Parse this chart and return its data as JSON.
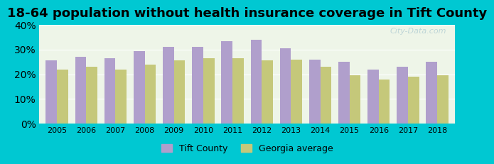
{
  "title": "18-64 population without health insurance coverage in Tift County",
  "years": [
    2005,
    2006,
    2007,
    2008,
    2009,
    2010,
    2011,
    2012,
    2013,
    2014,
    2015,
    2016,
    2017,
    2018
  ],
  "tift_county": [
    25.5,
    27.0,
    26.5,
    29.5,
    31.0,
    31.0,
    33.5,
    34.0,
    30.5,
    26.0,
    25.0,
    22.0,
    23.0,
    25.0
  ],
  "georgia_avg": [
    22.0,
    23.0,
    22.0,
    24.0,
    25.5,
    26.5,
    26.5,
    25.5,
    26.0,
    23.0,
    19.5,
    18.0,
    19.0,
    19.5
  ],
  "tift_color": "#b09fcc",
  "georgia_color": "#c5c87a",
  "background_outer": "#00c8d2",
  "background_inner": "#eef5e8",
  "ylim": [
    0,
    40
  ],
  "yticks": [
    0,
    10,
    20,
    30,
    40
  ],
  "ylabel_format": "{}%",
  "bar_width": 0.38,
  "legend_tift": "Tift County",
  "legend_georgia": "Georgia average",
  "title_fontsize": 13,
  "watermark": "City-Data.com"
}
